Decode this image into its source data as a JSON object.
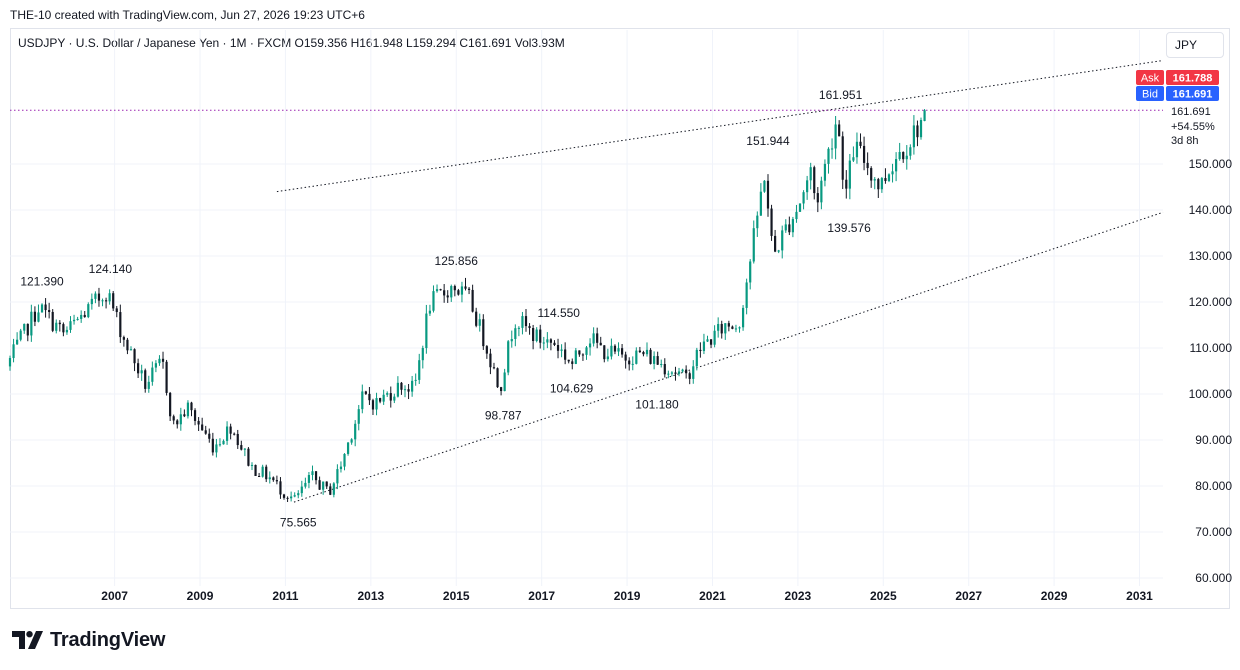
{
  "credit": "THE-10 created with TradingView.com, Jun 27, 2026 19:23 UTC+6",
  "symbol_line": "USDJPY · U.S. Dollar / Japanese Yen · 1M · FXCM  O159.356  H161.948  L159.294  C161.691  Vol3.93M",
  "currency": "JPY",
  "brand": "TradingView",
  "colors": {
    "up": "#089981",
    "down": "#131722",
    "ask": "#f23645",
    "bid": "#2962ff",
    "price_line": "#9c27b0",
    "grid": "#f0f3fa"
  },
  "price_panel": {
    "ask_label": "Ask",
    "ask_value": "161.788",
    "bid_label": "Bid",
    "bid_value": "161.691",
    "last": "161.691",
    "change": "+54.55%",
    "countdown": "3d 8h"
  },
  "chart_data": {
    "type": "candlestick",
    "x_ticks": [
      "2007",
      "2009",
      "2011",
      "2013",
      "2015",
      "2017",
      "2019",
      "2021",
      "2023",
      "2025",
      "2027",
      "2029",
      "2031"
    ],
    "y_ticks": [
      "60.000",
      "70.000",
      "80.000",
      "90.000",
      "100.000",
      "110.000",
      "120.000",
      "130.000",
      "140.000",
      "150.000"
    ],
    "ylim": [
      60,
      172
    ],
    "xlim": [
      2005.05,
      2032.05
    ],
    "annotations": [
      {
        "label": "121.390",
        "t": 2005.8,
        "v": 121.39,
        "pos": "above"
      },
      {
        "label": "124.140",
        "t": 2007.4,
        "v": 124.14,
        "pos": "above"
      },
      {
        "label": "75.565",
        "t": 2011.8,
        "v": 75.565,
        "pos": "below"
      },
      {
        "label": "125.856",
        "t": 2015.5,
        "v": 125.856,
        "pos": "above"
      },
      {
        "label": "98.787",
        "t": 2016.6,
        "v": 98.787,
        "pos": "below"
      },
      {
        "label": "114.550",
        "t": 2017.9,
        "v": 114.55,
        "pos": "above"
      },
      {
        "label": "104.629",
        "t": 2018.2,
        "v": 104.629,
        "pos": "below"
      },
      {
        "label": "101.180",
        "t": 2020.2,
        "v": 101.18,
        "pos": "below"
      },
      {
        "label": "151.944",
        "t": 2022.8,
        "v": 151.944,
        "pos": "above"
      },
      {
        "label": "161.951",
        "t": 2024.5,
        "v": 161.951,
        "pos": "above"
      },
      {
        "label": "139.576",
        "t": 2024.7,
        "v": 139.576,
        "pos": "below"
      }
    ],
    "trendlines": [
      {
        "from": [
          2011.7,
          76.5
        ],
        "to": [
          2032.05,
          139.5
        ]
      },
      {
        "from": [
          2011.3,
          144.0
        ],
        "to": [
          2032.05,
          172.5
        ]
      }
    ],
    "anchors": [
      [
        2005.05,
        106
      ],
      [
        2005.8,
        119
      ],
      [
        2006.4,
        113
      ],
      [
        2007.4,
        122.5
      ],
      [
        2007.8,
        112
      ],
      [
        2008.3,
        102
      ],
      [
        2008.7,
        107
      ],
      [
        2008.95,
        93
      ],
      [
        2009.3,
        97
      ],
      [
        2009.9,
        88.5
      ],
      [
        2010.3,
        93
      ],
      [
        2010.8,
        84
      ],
      [
        2011.2,
        82
      ],
      [
        2011.5,
        79
      ],
      [
        2011.8,
        77
      ],
      [
        2012.2,
        82
      ],
      [
        2012.6,
        78.5
      ],
      [
        2012.9,
        85
      ],
      [
        2013.4,
        99.5
      ],
      [
        2013.7,
        98
      ],
      [
        2014.3,
        102
      ],
      [
        2014.6,
        101
      ],
      [
        2014.95,
        119.5
      ],
      [
        2015.5,
        123.5
      ],
      [
        2015.9,
        120.5
      ],
      [
        2016.3,
        110
      ],
      [
        2016.6,
        101
      ],
      [
        2016.95,
        116.5
      ],
      [
        2017.5,
        112
      ],
      [
        2017.9,
        111
      ],
      [
        2018.3,
        106.5
      ],
      [
        2018.7,
        112.5
      ],
      [
        2019.0,
        109.5
      ],
      [
        2019.5,
        108
      ],
      [
        2019.95,
        108.8
      ],
      [
        2020.2,
        107.5
      ],
      [
        2020.7,
        105
      ],
      [
        2020.95,
        103.2
      ],
      [
        2021.3,
        110
      ],
      [
        2021.9,
        115
      ],
      [
        2022.2,
        115
      ],
      [
        2022.5,
        131
      ],
      [
        2022.8,
        148
      ],
      [
        2023.0,
        130
      ],
      [
        2023.3,
        136
      ],
      [
        2023.6,
        141
      ],
      [
        2023.9,
        149
      ],
      [
        2024.0,
        141
      ],
      [
        2024.5,
        160.5
      ],
      [
        2024.7,
        143
      ],
      [
        2024.9,
        154
      ],
      [
        2025.2,
        150
      ],
      [
        2025.5,
        145
      ],
      [
        2025.9,
        152
      ],
      [
        2026.2,
        155
      ],
      [
        2026.45,
        159.356
      ]
    ],
    "last": {
      "open": 159.356,
      "high": 161.948,
      "low": 159.294,
      "close": 161.691
    }
  }
}
